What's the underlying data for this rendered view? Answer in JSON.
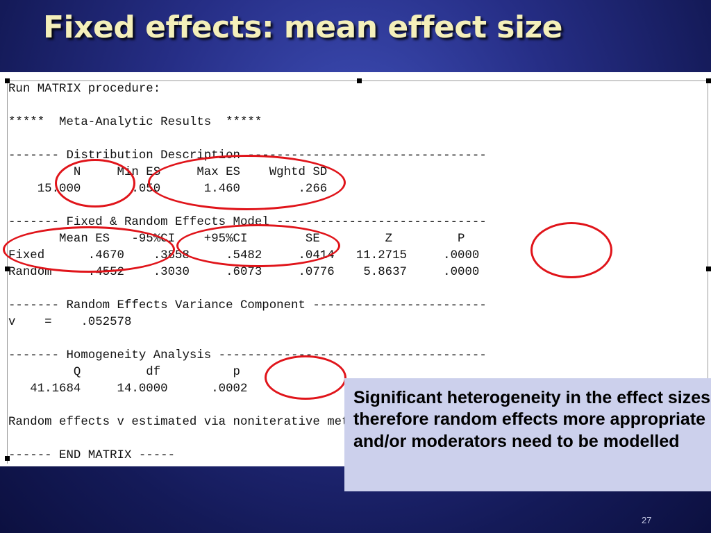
{
  "slide": {
    "title": "Fixed effects: mean effect size",
    "slide_number": "27"
  },
  "output": {
    "lines": [
      "Run MATRIX procedure:",
      "*****  Meta-Analytic Results  *****",
      "------- Distribution Description ---------------------------------",
      "         N     Min ES     Max ES    Wghtd SD",
      "    15.000       .050      1.460        .266",
      "------- Fixed & Random Effects Model -----------------------------",
      "       Mean ES   -95%CI    +95%CI        SE         Z         P",
      "Fixed      .4670    .3858     .5482     .0414   11.2715     .0000",
      "Random     .4552    .3030     .6073     .0776    5.8637     .0000",
      "------- Random Effects Variance Component ------------------------",
      "v    =    .052578",
      "------- Homogeneity Analysis -------------------------------------",
      "         Q         df          p",
      "   41.1684     14.0000      .0002",
      "Random effects v estimated via noniterative method of moments.",
      "------ END MATRIX -----"
    ]
  },
  "annotation": {
    "ring_color": "#e0141a",
    "callout_text": "Significant heterogeneity in the effect sizes therefore random effects more appropriate and/or moderators need to be modelled"
  }
}
